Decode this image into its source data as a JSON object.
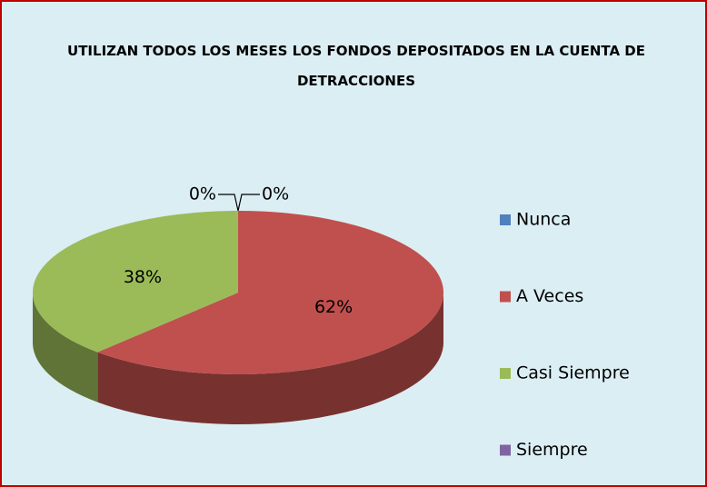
{
  "chart_data": {
    "type": "pie",
    "title": "UTILIZAN TODOS LOS MESES LOS FONDOS DEPOSITADOS EN LA CUENTA DE DETRACCIONES",
    "categories": [
      "Nunca",
      "A Veces",
      "Casi Siempre",
      "Siempre"
    ],
    "values": [
      0,
      62,
      38,
      0
    ],
    "value_labels": [
      "0%",
      "62%",
      "38%",
      "0%"
    ],
    "colors": [
      "#4f81bd",
      "#c0504d",
      "#9bbb59",
      "#8064a2"
    ],
    "legend": "right"
  }
}
